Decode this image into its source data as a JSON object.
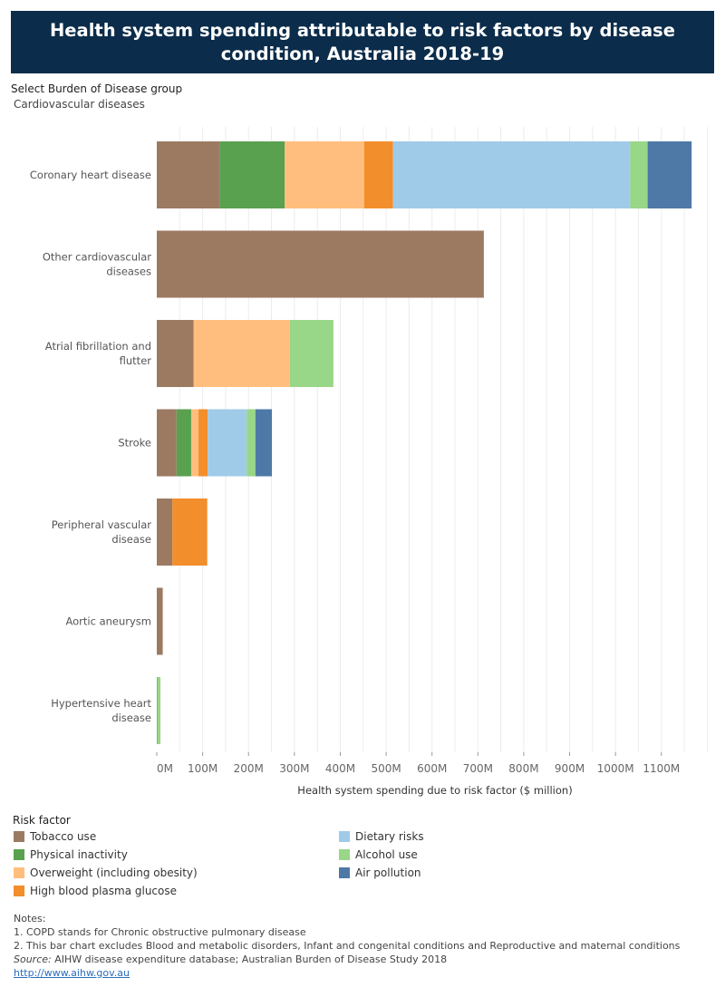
{
  "title": "Health system spending attributable to risk factors by disease condition, Australia 2018-19",
  "filter": {
    "label": "Select Burden of Disease group",
    "value": "Cardiovascular diseases"
  },
  "chart_data": {
    "type": "bar",
    "orientation": "horizontal",
    "stacked": true,
    "categories": [
      "Coronary heart disease",
      "Other cardiovascular diseases",
      "Atrial fibrillation and flutter",
      "Stroke",
      "Peripheral vascular disease",
      "Aortic aneurysm",
      "Hypertensive heart disease"
    ],
    "series": [
      {
        "name": "Tobacco use",
        "color": "#9c7a62",
        "values": [
          137,
          713,
          80,
          43,
          34,
          13,
          0
        ]
      },
      {
        "name": "Physical inactivity",
        "color": "#59a14f",
        "values": [
          142,
          0,
          0,
          32,
          0,
          0,
          1
        ]
      },
      {
        "name": "Overweight (including obesity)",
        "color": "#ffbe7d",
        "values": [
          173,
          0,
          210,
          16,
          0,
          0,
          0
        ]
      },
      {
        "name": "High blood plasma glucose",
        "color": "#f28e2b",
        "values": [
          63,
          0,
          0,
          20,
          76,
          0,
          0
        ]
      },
      {
        "name": "Dietary risks",
        "color": "#a0cbe8",
        "values": [
          517,
          0,
          0,
          85,
          0,
          0,
          0
        ]
      },
      {
        "name": "Alcohol use",
        "color": "#98d688",
        "values": [
          38,
          0,
          95,
          19,
          0,
          0,
          7
        ]
      },
      {
        "name": "Air pollution",
        "color": "#4e79a7",
        "values": [
          96,
          0,
          0,
          36,
          0,
          0,
          0
        ]
      }
    ],
    "x_ticks": [
      0,
      100,
      200,
      300,
      400,
      500,
      600,
      700,
      800,
      900,
      1000,
      1100
    ],
    "x_tick_labels": [
      "0M",
      "100M",
      "200M",
      "300M",
      "400M",
      "500M",
      "600M",
      "700M",
      "800M",
      "900M",
      "1000M",
      "1100M"
    ],
    "xlim": [
      0,
      1215
    ],
    "xlabel": "Health system spending due to risk factor ($ million)",
    "grid": true,
    "legend_title": "Risk factor",
    "legend_position": "bottom"
  },
  "notes": {
    "heading": "Notes:",
    "line1": "1. COPD stands for Chronic obstructive pulmonary disease",
    "line2": "2. This bar chart excludes Blood and metabolic disorders, Infant and congenital conditions and Reproductive and maternal conditions",
    "source_label": "Source:",
    "source_text": " AIHW disease expenditure database; Australian Burden of Disease Study 2018",
    "link": "http://www.aihw.gov.au"
  }
}
